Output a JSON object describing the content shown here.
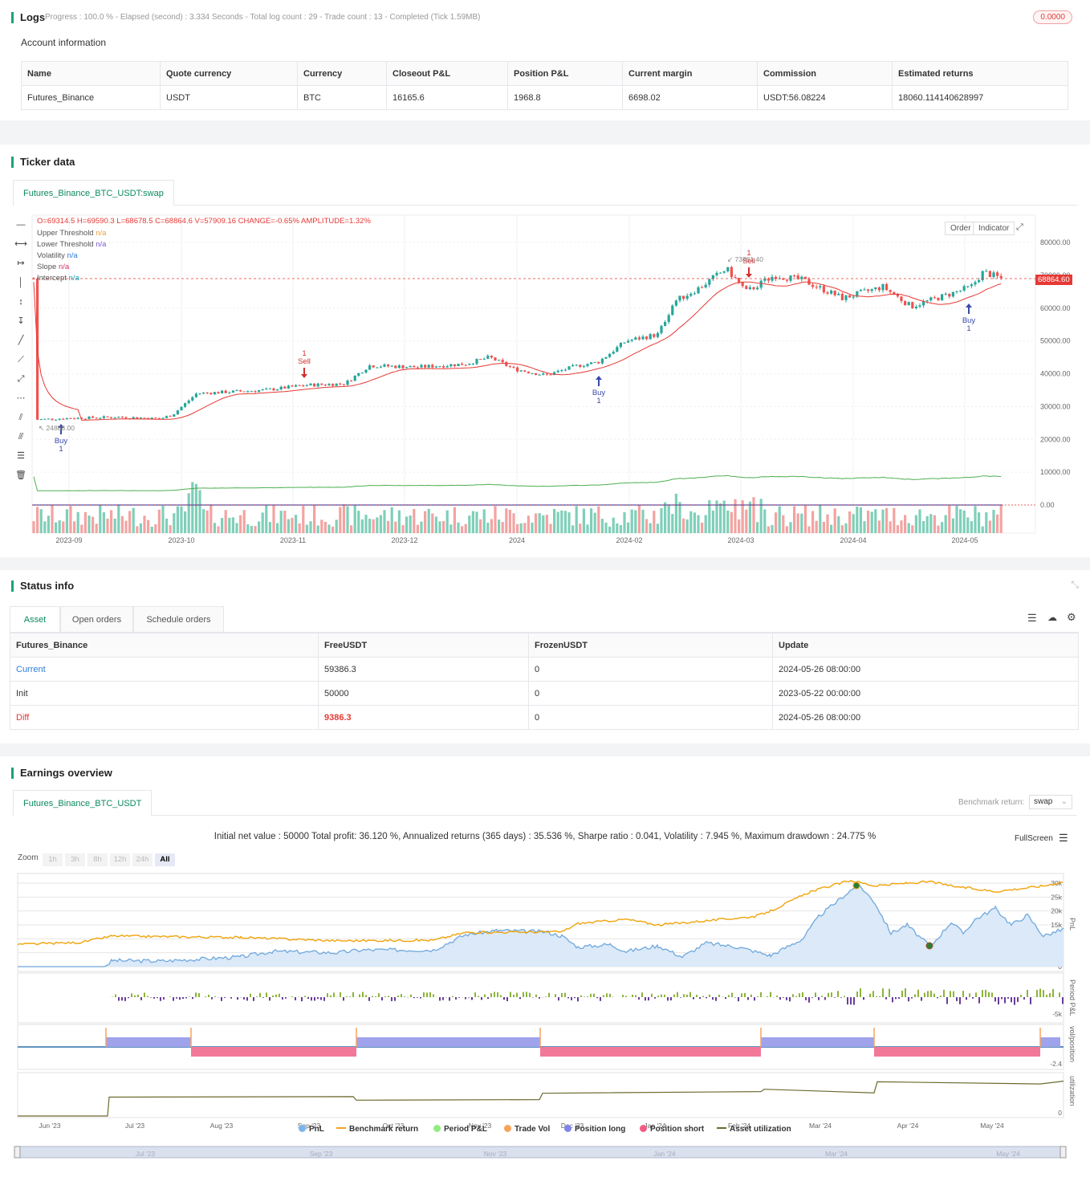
{
  "logs": {
    "title": "Logs",
    "progress": "Progress : 100.0 % - Elapsed (second) : 3.334  Seconds - Total log count : 29 - Trade count : 13 - Completed (Tick 1.59MB)",
    "badge": "0.0000"
  },
  "account": {
    "title": "Account information",
    "headers": [
      "Name",
      "Quote currency",
      "Currency",
      "Closeout P&L",
      "Position P&L",
      "Current margin",
      "Commission",
      "Estimated returns"
    ],
    "row": [
      "Futures_Binance",
      "USDT",
      "BTC",
      "16165.6",
      "1968.8",
      "6698.02",
      "USDT:56.08224",
      "18060.114140628997"
    ]
  },
  "ticker": {
    "title": "Ticker data",
    "tab": "Futures_Binance_BTC_USDT:swap",
    "ohlc": "O=69314.5 H=69590.3 L=68678.5 C=68864.6 V=57909.16 CHANGE=-0.65% AMPLITUDE=1.32%",
    "indicators": [
      {
        "name": "Upper Threshold",
        "value": "n/a",
        "color": "#e6a23c"
      },
      {
        "name": "Lower Threshold",
        "value": "n/a",
        "color": "#7b5cd6"
      },
      {
        "name": "Volatility",
        "value": "n/a",
        "color": "#2f7ed8"
      },
      {
        "name": "Slope",
        "value": "n/a",
        "color": "#d6336c"
      },
      {
        "name": "Intercept",
        "value": "n/a",
        "color": "#17a2b8"
      }
    ],
    "buttons": {
      "order": "Order",
      "indicator": "Indicator"
    },
    "price_tag": "68864.60",
    "y_ticks": [
      "80000.00",
      "70000.00",
      "60000.00",
      "50000.00",
      "40000.00",
      "30000.00",
      "20000.00",
      "10000.00",
      "0.00"
    ],
    "x_ticks": [
      "2023-09",
      "2023-10",
      "2023-11",
      "2023-12",
      "2024",
      "2024-02",
      "2024-03",
      "2024-04",
      "2024-05"
    ],
    "markers": [
      {
        "label": "Buy",
        "count": "1"
      },
      {
        "label": "Sell",
        "count": "1"
      },
      {
        "label": "Buy",
        "count": "1"
      },
      {
        "label": "Sell",
        "count": "1"
      },
      {
        "label": "Buy",
        "count": "1"
      }
    ],
    "low_label": "24888.00",
    "high_label": "73881.40"
  },
  "status": {
    "title": "Status info",
    "tabs": [
      "Asset",
      "Open orders",
      "Schedule orders"
    ],
    "headers": [
      "Futures_Binance",
      "FreeUSDT",
      "FrozenUSDT",
      "Update"
    ],
    "rows": [
      [
        "Current",
        "59386.3",
        "0",
        "2024-05-26 08:00:00"
      ],
      [
        "Init",
        "50000",
        "0",
        "2023-05-22 00:00:00"
      ],
      [
        "Diff",
        "9386.3",
        "0",
        "2024-05-26 08:00:00"
      ]
    ]
  },
  "earnings": {
    "title": "Earnings overview",
    "tab": "Futures_Binance_BTC_USDT",
    "benchmark_label": "Benchmark return:",
    "benchmark_value": "swap",
    "summary": "Initial net value : 50000 Total profit: 36.120 %, Annualized returns (365 days) : 35.536 %, Sharpe ratio : 0.041, Volatility : 7.945 %, Maximum drawdown : 24.775 %",
    "fullscreen": "FullScreen",
    "zoom_label": "Zoom",
    "zoom_options": [
      "1h",
      "3h",
      "8h",
      "12h",
      "24h",
      "All"
    ],
    "pnl_ticks": [
      "30k",
      "25k",
      "20k",
      "15k",
      "10k",
      "5k",
      "0"
    ],
    "period_ticks": [
      "-5k"
    ],
    "vol_ticks": [
      "-2.4"
    ],
    "util_ticks": [
      "0"
    ],
    "axis_titles": [
      "PnL",
      "Period P&L",
      "vol/position",
      "utilization"
    ],
    "x_ticks": [
      "Jun '23",
      "Jul '23",
      "Aug '23",
      "Sep '23",
      "Oct '23",
      "Nov '23",
      "Dec '23",
      "Jan '24",
      "Feb '24",
      "Mar '24",
      "Apr '24",
      "May '24"
    ],
    "nav_ticks": [
      "Jul '23",
      "Sep '23",
      "Nov '23",
      "Jan '24",
      "Mar '24",
      "May '24"
    ],
    "legend": [
      {
        "name": "PnL",
        "color": "#7cb5ec",
        "kind": "dot"
      },
      {
        "name": "Benchmark return",
        "color": "#f7a21b",
        "kind": "line"
      },
      {
        "name": "Period P&L",
        "color": "#90ed7d",
        "kind": "dot"
      },
      {
        "name": "Trade Vol",
        "color": "#f7a35c",
        "kind": "dot"
      },
      {
        "name": "Position long",
        "color": "#8085e9",
        "kind": "dot"
      },
      {
        "name": "Position short",
        "color": "#f15c80",
        "kind": "dot"
      },
      {
        "name": "Asset utilization",
        "color": "#6b6b2f",
        "kind": "line"
      }
    ]
  }
}
